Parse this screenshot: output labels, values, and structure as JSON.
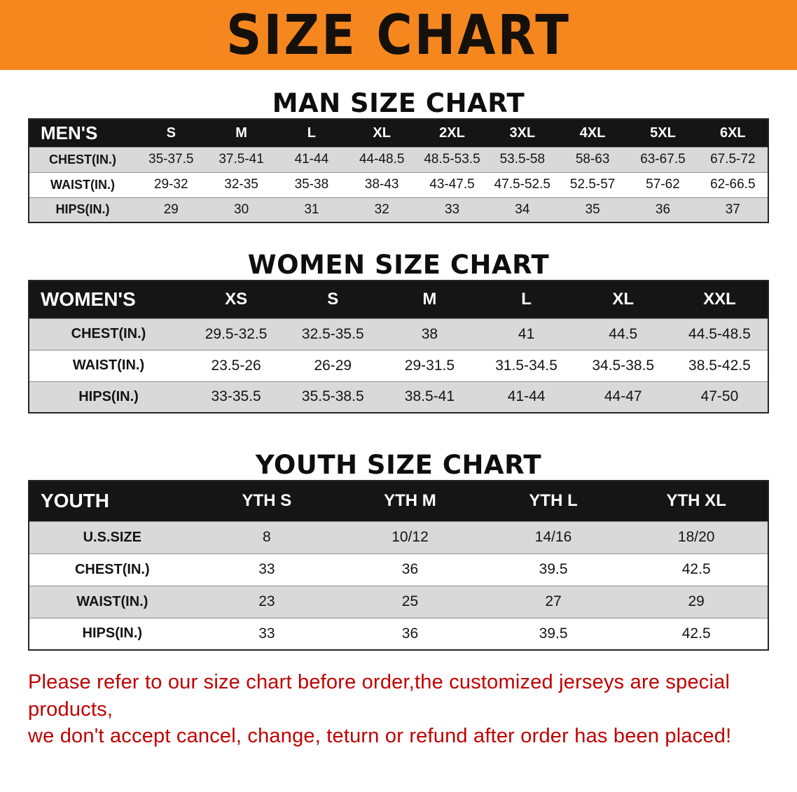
{
  "banner": {
    "title": "SIZE CHART"
  },
  "colors": {
    "banner-orange": "#f6871f",
    "header-black": "#151515",
    "stripe-gray": "#d9d9d9",
    "disclaimer-red": "#c00000"
  },
  "sections": {
    "men": {
      "heading": "MAN SIZE CHART",
      "table": {
        "header": [
          "MEN'S",
          "S",
          "M",
          "L",
          "XL",
          "2XL",
          "3XL",
          "4XL",
          "5XL",
          "6XL"
        ],
        "rows": [
          [
            "CHEST(IN.)",
            "35-37.5",
            "37.5-41",
            "41-44",
            "44-48.5",
            "48.5-53.5",
            "53.5-58",
            "58-63",
            "63-67.5",
            "67.5-72"
          ],
          [
            "WAIST(IN.)",
            "29-32",
            "32-35",
            "35-38",
            "38-43",
            "43-47.5",
            "47.5-52.5",
            "52.5-57",
            "57-62",
            "62-66.5"
          ],
          [
            "HIPS(IN.)",
            "29",
            "30",
            "31",
            "32",
            "33",
            "34",
            "35",
            "36",
            "37"
          ]
        ]
      }
    },
    "women": {
      "heading": "WOMEN SIZE CHART",
      "table": {
        "header": [
          "WOMEN'S",
          "XS",
          "S",
          "M",
          "L",
          "XL",
          "XXL"
        ],
        "rows": [
          [
            "CHEST(IN.)",
            "29.5-32.5",
            "32.5-35.5",
            "38",
            "41",
            "44.5",
            "44.5-48.5"
          ],
          [
            "WAIST(IN.)",
            "23.5-26",
            "26-29",
            "29-31.5",
            "31.5-34.5",
            "34.5-38.5",
            "38.5-42.5"
          ],
          [
            "HIPS(IN.)",
            "33-35.5",
            "35.5-38.5",
            "38.5-41",
            "41-44",
            "44-47",
            "47-50"
          ]
        ]
      }
    },
    "youth": {
      "heading": "YOUTH SIZE CHART",
      "table": {
        "header": [
          "YOUTH",
          "YTH S",
          "YTH M",
          "YTH L",
          "YTH XL"
        ],
        "rows": [
          [
            "U.S.SIZE",
            "8",
            "10/12",
            "14/16",
            "18/20"
          ],
          [
            "CHEST(IN.)",
            "33",
            "36",
            "39.5",
            "42.5"
          ],
          [
            "WAIST(IN.)",
            "23",
            "25",
            "27",
            "29"
          ],
          [
            "HIPS(IN.)",
            "33",
            "36",
            "39.5",
            "42.5"
          ]
        ]
      }
    }
  },
  "disclaimer": {
    "lines": [
      "Please refer to our size chart before order,the customized jerseys are special products,",
      "we don't accept cancel, change, teturn or refund after order has been placed!"
    ]
  }
}
